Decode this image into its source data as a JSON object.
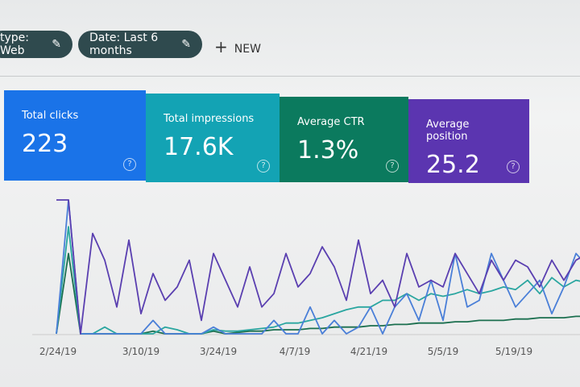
{
  "filters": {
    "chips": [
      "type: Web",
      "Date: Last 6 months"
    ],
    "new_button": "NEW"
  },
  "metrics": [
    {
      "label": "Total clicks",
      "value": "223",
      "color": "#1a73e8"
    },
    {
      "label": "Total impressions",
      "value": "17.6K",
      "color": "#13a3b4"
    },
    {
      "label": "Average CTR",
      "value": "1.3%",
      "color": "#0b7a5e"
    },
    {
      "label": "Average position",
      "value": "25.2",
      "color": "#5b35b0"
    }
  ],
  "chart": {
    "type": "line",
    "ylim": [
      0,
      100
    ],
    "x_labels": [
      "2/24/19",
      "3/10/19",
      "3/24/19",
      "4/7/19",
      "4/21/19",
      "5/5/19",
      "5/19/19"
    ],
    "series": [
      {
        "color": "#5a3fb0",
        "values": [
          100,
          100,
          0,
          75,
          55,
          20,
          70,
          15,
          45,
          25,
          35,
          55,
          10,
          60,
          40,
          20,
          50,
          20,
          30,
          60,
          35,
          45,
          65,
          50,
          25,
          70,
          30,
          40,
          20,
          60,
          35,
          40,
          35,
          60,
          45,
          30,
          55,
          40,
          55,
          50,
          35,
          55,
          40,
          55,
          60
        ]
      },
      {
        "color": "#4a7fd8",
        "values": [
          0,
          100,
          0,
          0,
          0,
          0,
          0,
          0,
          10,
          0,
          0,
          0,
          0,
          5,
          0,
          0,
          0,
          0,
          10,
          0,
          0,
          20,
          0,
          10,
          0,
          5,
          20,
          0,
          20,
          30,
          10,
          40,
          10,
          60,
          20,
          25,
          60,
          40,
          20,
          30,
          40,
          15,
          35,
          60,
          50
        ]
      },
      {
        "color": "#2aa6a0",
        "values": [
          0,
          80,
          0,
          0,
          5,
          0,
          0,
          0,
          0,
          5,
          3,
          0,
          0,
          3,
          2,
          2,
          3,
          4,
          5,
          8,
          8,
          10,
          12,
          15,
          18,
          20,
          20,
          25,
          25,
          30,
          25,
          30,
          28,
          30,
          33,
          30,
          32,
          35,
          33,
          40,
          30,
          42,
          35,
          40,
          38
        ]
      },
      {
        "color": "#1b6f4f",
        "values": [
          0,
          60,
          0,
          0,
          0,
          0,
          0,
          0,
          2,
          0,
          0,
          0,
          0,
          2,
          0,
          1,
          2,
          2,
          3,
          3,
          3,
          4,
          4,
          5,
          5,
          5,
          6,
          6,
          7,
          7,
          8,
          8,
          8,
          9,
          9,
          10,
          10,
          10,
          11,
          11,
          12,
          12,
          12,
          13,
          13
        ]
      }
    ]
  }
}
